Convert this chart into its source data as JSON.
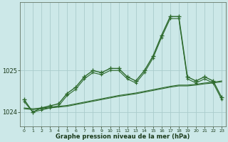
{
  "hours": [
    0,
    1,
    2,
    3,
    4,
    5,
    6,
    7,
    8,
    9,
    10,
    11,
    12,
    13,
    14,
    15,
    16,
    17,
    18,
    19,
    20,
    21,
    22,
    23
  ],
  "pressure_main": [
    1024.3,
    1024.0,
    1024.1,
    1024.15,
    1024.2,
    1024.45,
    1024.6,
    1024.85,
    1025.0,
    1024.95,
    1025.05,
    1025.05,
    1024.85,
    1024.75,
    1025.0,
    1025.35,
    1025.85,
    1026.3,
    1026.3,
    1024.85,
    1024.75,
    1024.85,
    1024.75,
    1024.35
  ],
  "pressure_line2": [
    1024.25,
    1024.0,
    1024.05,
    1024.1,
    1024.15,
    1024.4,
    1024.55,
    1024.8,
    1024.95,
    1024.9,
    1025.0,
    1025.0,
    1024.8,
    1024.7,
    1024.95,
    1025.3,
    1025.8,
    1026.25,
    1026.25,
    1024.8,
    1024.7,
    1024.8,
    1024.7,
    1024.3
  ],
  "pressure_diag1": [
    1024.1,
    1024.08,
    1024.1,
    1024.12,
    1024.14,
    1024.16,
    1024.2,
    1024.24,
    1024.28,
    1024.32,
    1024.36,
    1024.4,
    1024.43,
    1024.46,
    1024.5,
    1024.54,
    1024.58,
    1024.62,
    1024.65,
    1024.65,
    1024.67,
    1024.7,
    1024.72,
    1024.75
  ],
  "pressure_diag2": [
    1024.08,
    1024.06,
    1024.08,
    1024.1,
    1024.12,
    1024.14,
    1024.18,
    1024.22,
    1024.26,
    1024.3,
    1024.34,
    1024.38,
    1024.41,
    1024.44,
    1024.48,
    1024.52,
    1024.56,
    1024.6,
    1024.63,
    1024.63,
    1024.65,
    1024.68,
    1024.7,
    1024.73
  ],
  "yticks": [
    1024,
    1025
  ],
  "ylim": [
    1023.65,
    1026.65
  ],
  "xlim": [
    -0.5,
    23.5
  ],
  "line_color": "#2d6a2d",
  "bg_color": "#cce8e8",
  "grid_color": "#aacccc",
  "xlabel": "Graphe pression niveau de la mer (hPa)",
  "label_color": "#1a3a1a"
}
